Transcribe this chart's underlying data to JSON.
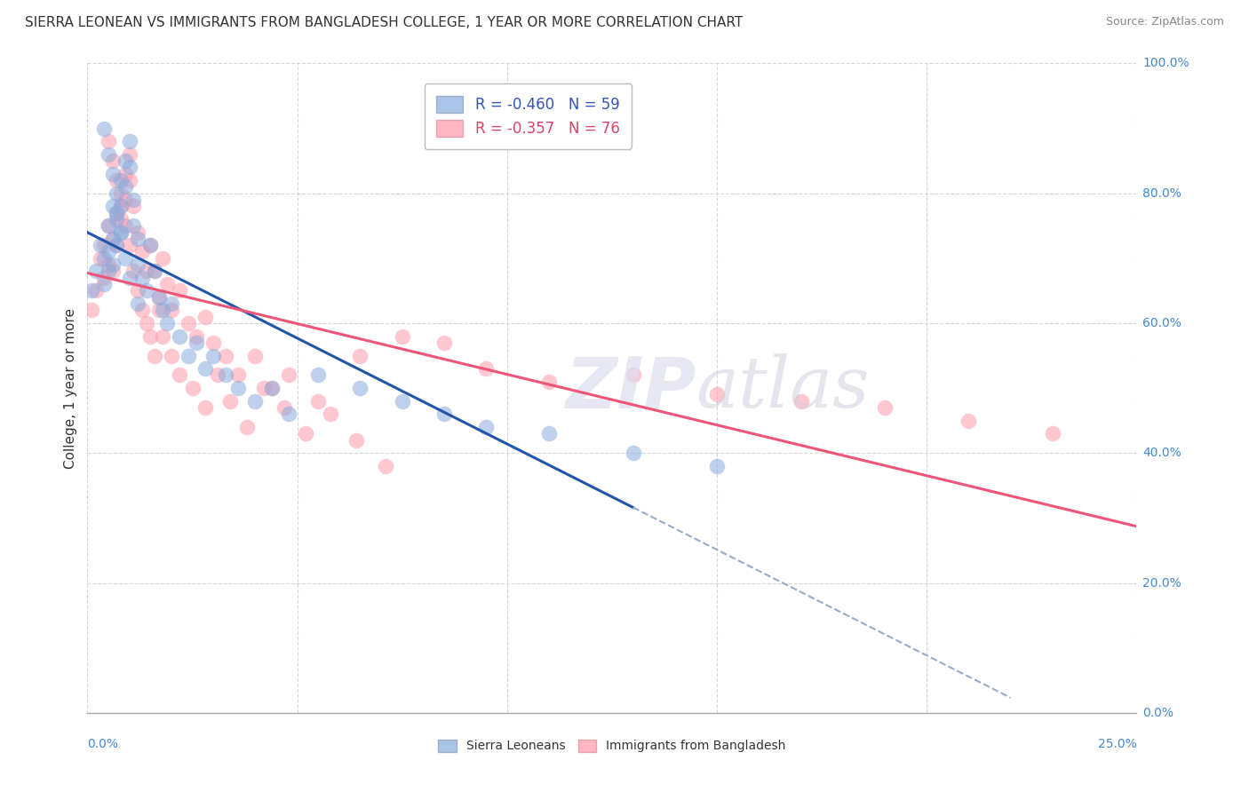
{
  "title": "SIERRA LEONEAN VS IMMIGRANTS FROM BANGLADESH COLLEGE, 1 YEAR OR MORE CORRELATION CHART",
  "source": "Source: ZipAtlas.com",
  "ylabel": "College, 1 year or more",
  "legend_label1": "R = -0.460   N = 59",
  "legend_label2": "R = -0.357   N = 76",
  "legend_entry1": "Sierra Leoneans",
  "legend_entry2": "Immigrants from Bangladesh",
  "color_blue": "#88AADD",
  "color_pink": "#FF99AA",
  "color_blue_line": "#2255AA",
  "color_pink_line": "#EE5577",
  "color_dashed": "#99AACC",
  "xmin": 0.0,
  "xmax": 0.25,
  "ymin": 0.0,
  "ymax": 1.0,
  "blue_scatter_x": [
    0.001,
    0.002,
    0.003,
    0.004,
    0.004,
    0.005,
    0.005,
    0.005,
    0.006,
    0.006,
    0.006,
    0.007,
    0.007,
    0.007,
    0.008,
    0.008,
    0.008,
    0.009,
    0.009,
    0.01,
    0.01,
    0.011,
    0.011,
    0.012,
    0.012,
    0.013,
    0.014,
    0.015,
    0.016,
    0.017,
    0.018,
    0.019,
    0.02,
    0.022,
    0.024,
    0.026,
    0.028,
    0.03,
    0.033,
    0.036,
    0.04,
    0.044,
    0.048,
    0.055,
    0.065,
    0.075,
    0.085,
    0.095,
    0.11,
    0.13,
    0.15,
    0.004,
    0.005,
    0.006,
    0.007,
    0.008,
    0.009,
    0.01,
    0.012
  ],
  "blue_scatter_y": [
    0.65,
    0.68,
    0.72,
    0.7,
    0.66,
    0.75,
    0.71,
    0.68,
    0.78,
    0.73,
    0.69,
    0.8,
    0.76,
    0.72,
    0.82,
    0.78,
    0.74,
    0.85,
    0.81,
    0.88,
    0.84,
    0.79,
    0.75,
    0.73,
    0.69,
    0.67,
    0.65,
    0.72,
    0.68,
    0.64,
    0.62,
    0.6,
    0.63,
    0.58,
    0.55,
    0.57,
    0.53,
    0.55,
    0.52,
    0.5,
    0.48,
    0.5,
    0.46,
    0.52,
    0.5,
    0.48,
    0.46,
    0.44,
    0.43,
    0.4,
    0.38,
    0.9,
    0.86,
    0.83,
    0.77,
    0.74,
    0.7,
    0.67,
    0.63
  ],
  "pink_scatter_x": [
    0.001,
    0.002,
    0.003,
    0.004,
    0.004,
    0.005,
    0.005,
    0.006,
    0.006,
    0.007,
    0.007,
    0.008,
    0.008,
    0.009,
    0.009,
    0.01,
    0.01,
    0.011,
    0.012,
    0.013,
    0.014,
    0.015,
    0.016,
    0.017,
    0.018,
    0.019,
    0.02,
    0.022,
    0.024,
    0.026,
    0.028,
    0.03,
    0.033,
    0.036,
    0.04,
    0.044,
    0.048,
    0.055,
    0.065,
    0.075,
    0.085,
    0.095,
    0.11,
    0.13,
    0.15,
    0.17,
    0.19,
    0.21,
    0.23,
    0.005,
    0.006,
    0.007,
    0.008,
    0.009,
    0.01,
    0.011,
    0.012,
    0.013,
    0.014,
    0.015,
    0.016,
    0.017,
    0.018,
    0.02,
    0.022,
    0.025,
    0.028,
    0.031,
    0.034,
    0.038,
    0.042,
    0.047,
    0.052,
    0.058,
    0.064,
    0.071
  ],
  "pink_scatter_y": [
    0.62,
    0.65,
    0.7,
    0.67,
    0.72,
    0.75,
    0.69,
    0.73,
    0.68,
    0.77,
    0.72,
    0.8,
    0.76,
    0.83,
    0.79,
    0.86,
    0.82,
    0.78,
    0.74,
    0.71,
    0.68,
    0.72,
    0.68,
    0.64,
    0.7,
    0.66,
    0.62,
    0.65,
    0.6,
    0.58,
    0.61,
    0.57,
    0.55,
    0.52,
    0.55,
    0.5,
    0.52,
    0.48,
    0.55,
    0.58,
    0.57,
    0.53,
    0.51,
    0.52,
    0.49,
    0.48,
    0.47,
    0.45,
    0.43,
    0.88,
    0.85,
    0.82,
    0.78,
    0.75,
    0.72,
    0.68,
    0.65,
    0.62,
    0.6,
    0.58,
    0.55,
    0.62,
    0.58,
    0.55,
    0.52,
    0.5,
    0.47,
    0.52,
    0.48,
    0.44,
    0.5,
    0.47,
    0.43,
    0.46,
    0.42,
    0.38
  ]
}
